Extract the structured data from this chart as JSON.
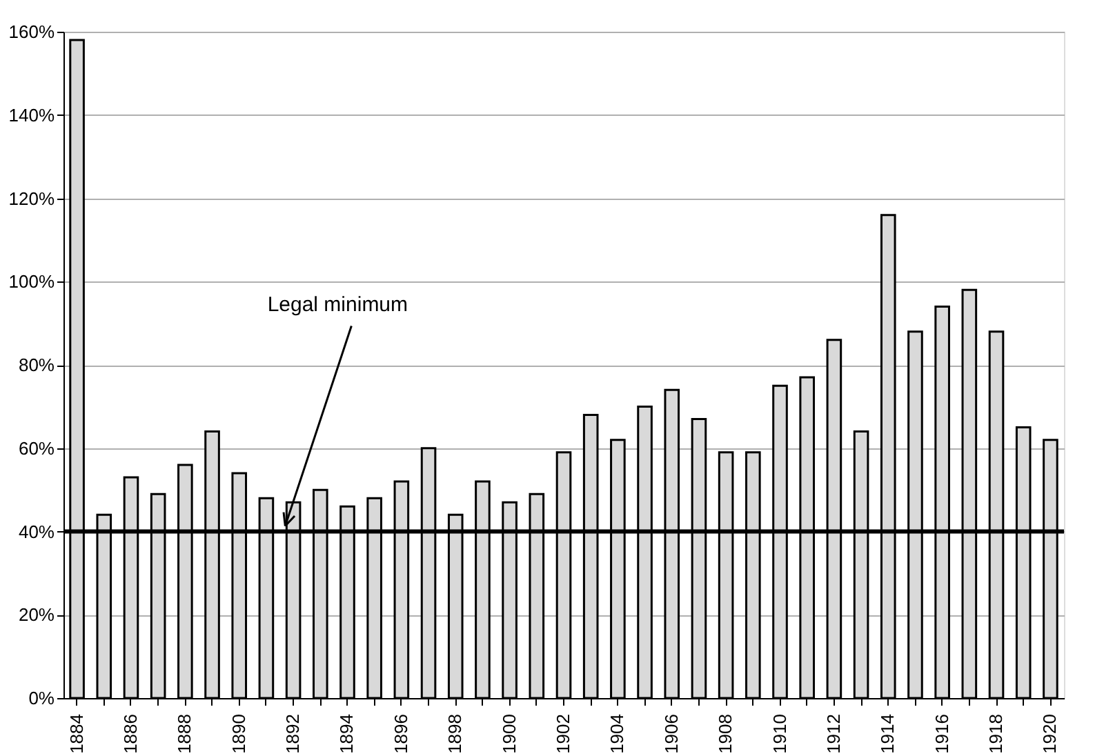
{
  "chart_data": {
    "type": "bar",
    "categories": [
      "1884",
      null,
      "1886",
      null,
      "1888",
      null,
      "1890",
      null,
      "1892",
      null,
      "1894",
      null,
      "1896",
      null,
      "1898",
      null,
      "1900",
      null,
      "1902",
      null,
      "1904",
      null,
      "1906",
      null,
      "1908",
      null,
      "1910",
      null,
      "1912",
      null,
      "1914",
      null,
      "1916",
      null,
      "1918",
      null,
      "1920"
    ],
    "series": [
      {
        "color": "#d9d9d9",
        "values": [
          158,
          44,
          53,
          49,
          56,
          64,
          54,
          48,
          47,
          50,
          46,
          48,
          52,
          60,
          44,
          52,
          47,
          49,
          59,
          68,
          62,
          70,
          74,
          67,
          59,
          59,
          75,
          77,
          86,
          64,
          116,
          88,
          94,
          98,
          88,
          65,
          62
        ]
      }
    ],
    "ylim": [
      0,
      160
    ],
    "yticks": [
      {
        "value": 0,
        "label": "0%"
      },
      {
        "value": 20,
        "label": "20%"
      },
      {
        "value": 40,
        "label": "40%"
      },
      {
        "value": 60,
        "label": "60%"
      },
      {
        "value": 80,
        "label": "80%"
      },
      {
        "value": 100,
        "label": "100%"
      },
      {
        "value": 120,
        "label": "120%"
      },
      {
        "value": 140,
        "label": "140%"
      },
      {
        "value": 160,
        "label": "160%"
      }
    ],
    "ref_lines": [
      {
        "axis": "y",
        "value": 40,
        "label": "Legal minimum",
        "color": "#000000"
      }
    ],
    "grid": "y"
  }
}
